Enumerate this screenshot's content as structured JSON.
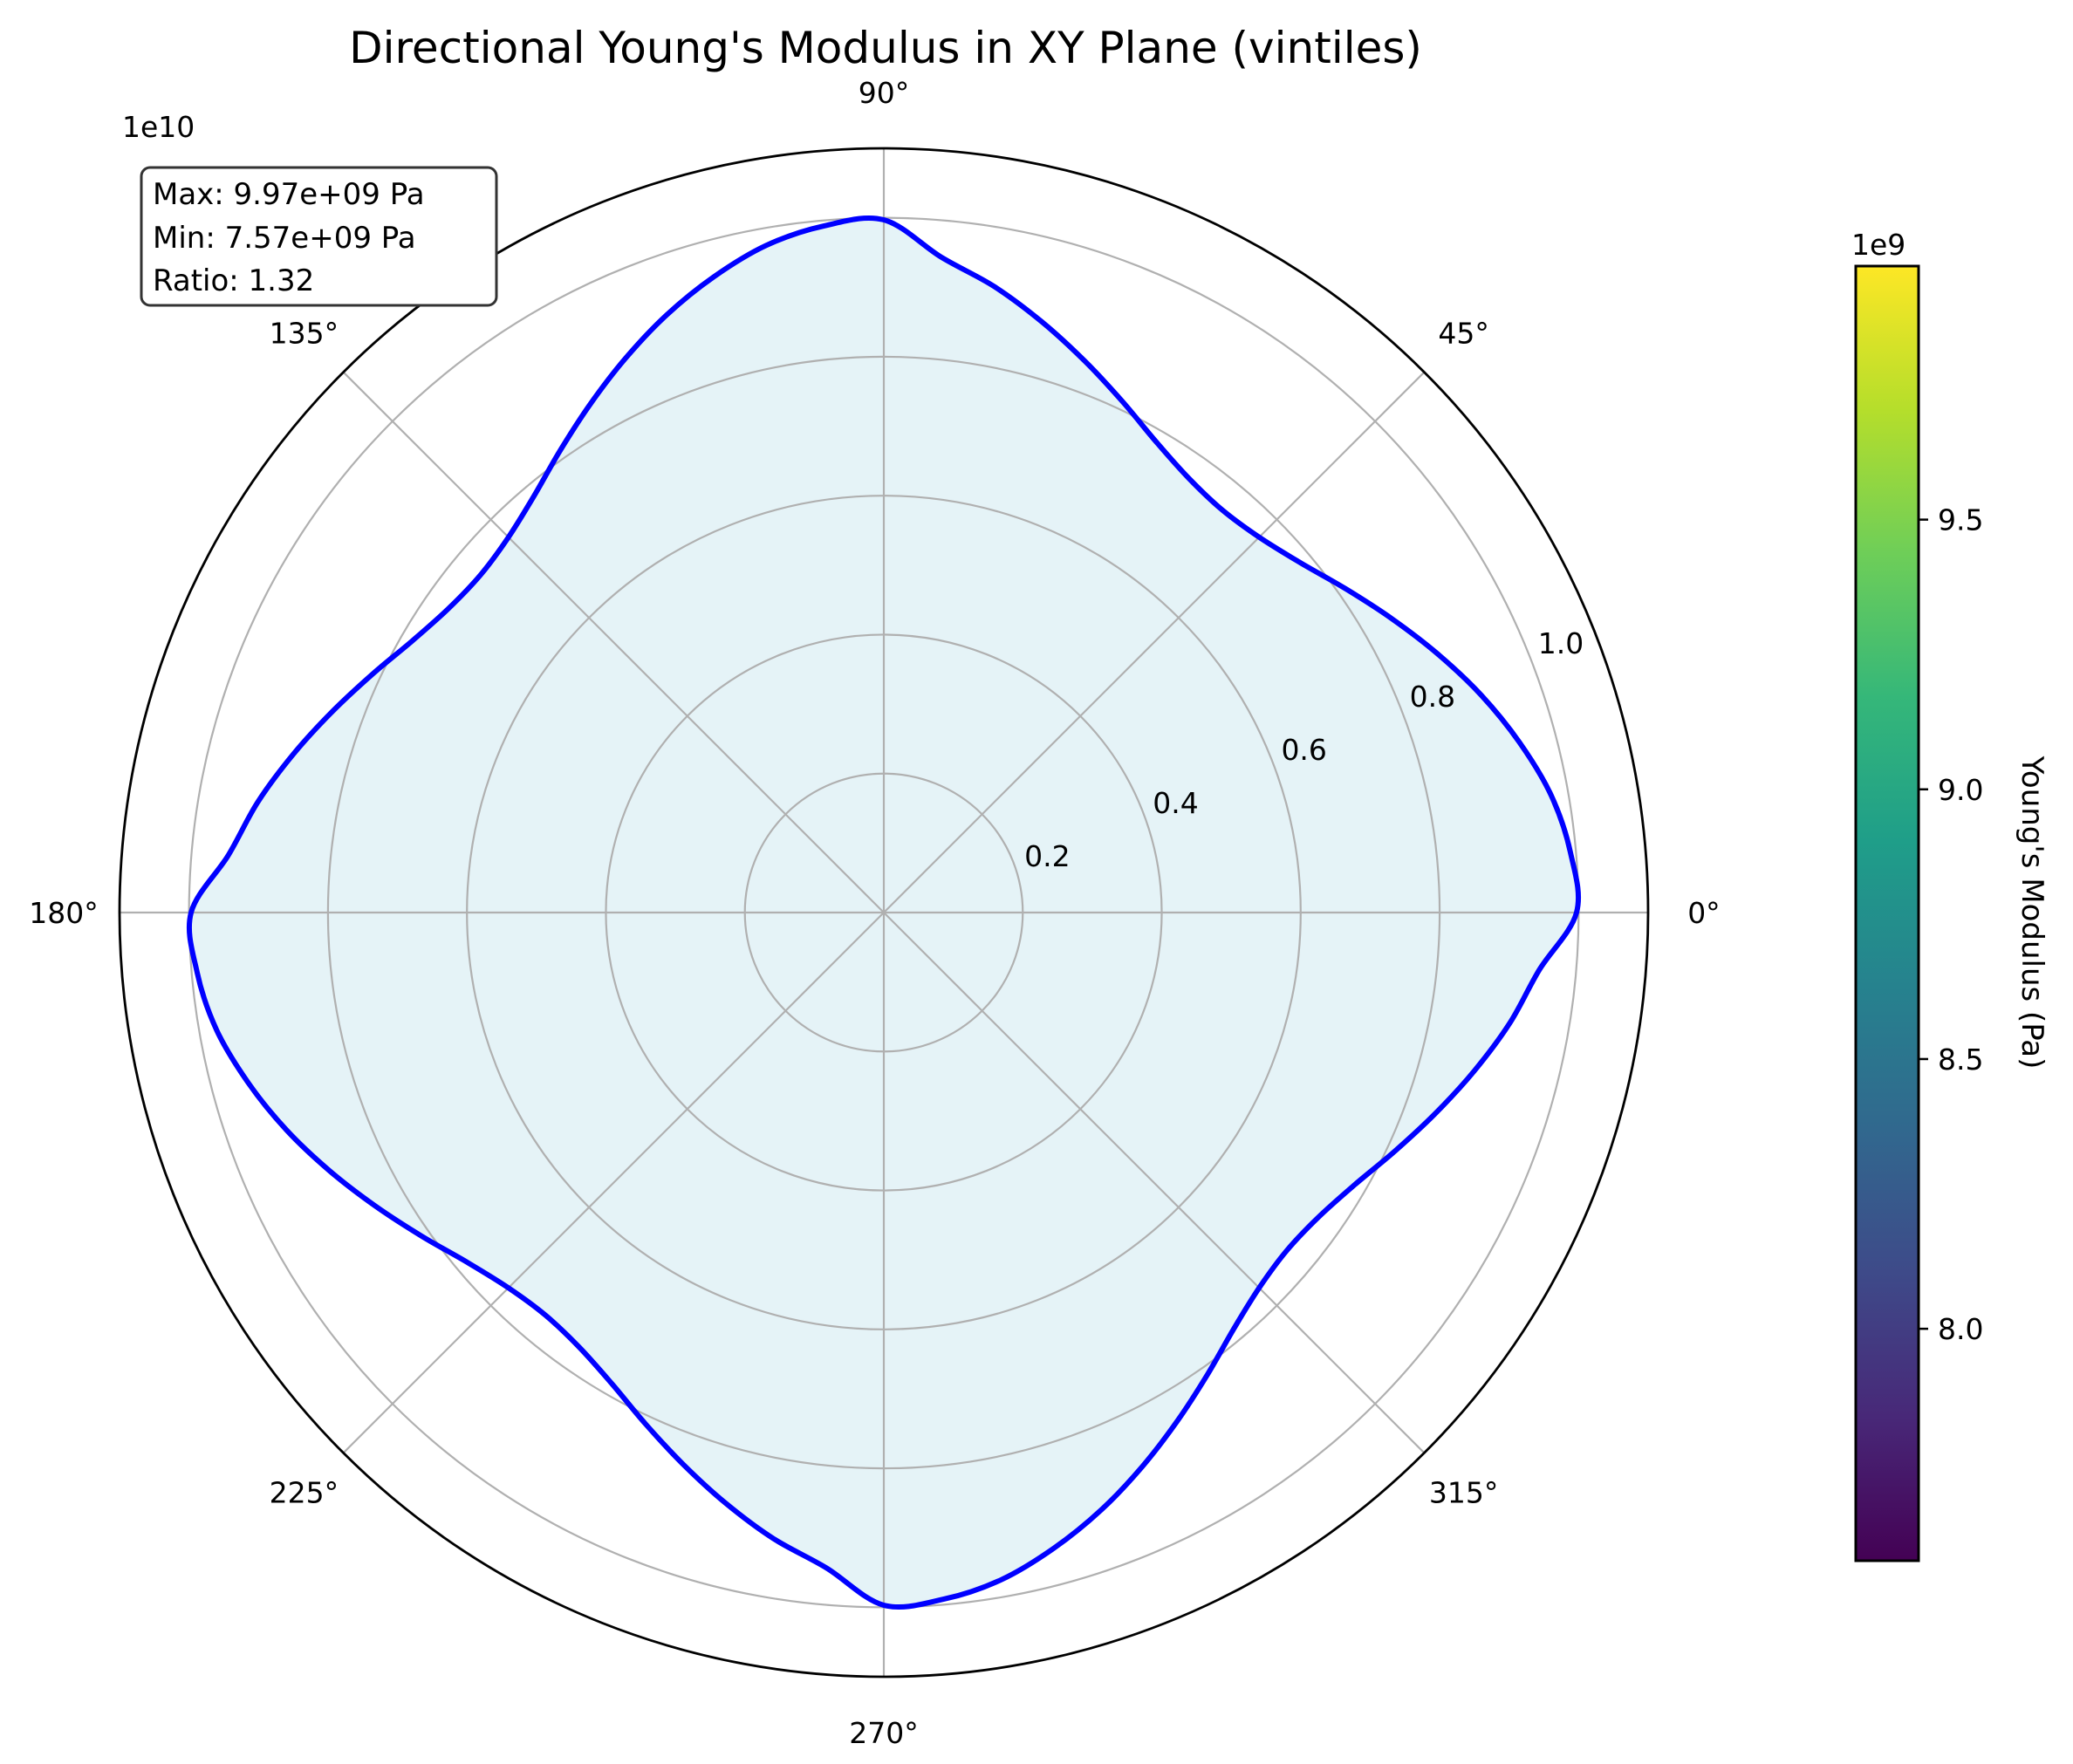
{
  "chart_data": {
    "type": "polar-line",
    "title": "Directional Young's Modulus in XY Plane (vintiles)",
    "radial_axis": {
      "offset_text": "1e10",
      "ticks": [
        0.2,
        0.4,
        0.6,
        0.8,
        1.0
      ],
      "tick_labels": [
        "0.2",
        "0.4",
        "0.6",
        "0.8",
        "1.0"
      ],
      "rlim": [
        0,
        1.1
      ]
    },
    "angular_axis": {
      "ticks_deg": [
        0,
        45,
        90,
        135,
        180,
        225,
        270,
        315
      ],
      "tick_labels": [
        "0°",
        "45°",
        "90°",
        "135°",
        "180°",
        "225°",
        "270°",
        "315°"
      ]
    },
    "grid": true,
    "series": [
      {
        "angle_deg": [
          0,
          5,
          10,
          15,
          20,
          25,
          30,
          35,
          40,
          45,
          50,
          55,
          60,
          65,
          70,
          75,
          80,
          85,
          90
        ],
        "modulus_1e10_pa": [
          0.997,
          0.992,
          0.975,
          0.947,
          0.915,
          0.88,
          0.845,
          0.812,
          0.783,
          0.764,
          0.757,
          0.764,
          0.783,
          0.812,
          0.845,
          0.88,
          0.915,
          0.947,
          0.997
        ],
        "symmetry": "fourfold",
        "line_color": "#0000ff",
        "fill_color": "#e5f3f7"
      }
    ],
    "annotation": {
      "lines": [
        "Max: 9.97e+09 Pa",
        "Min: 7.57e+09 Pa",
        "Ratio: 1.32"
      ]
    },
    "colorbar": {
      "label": "Young's Modulus (Pa)",
      "offset_text": "1e9",
      "range": [
        7.57,
        9.97
      ],
      "ticks": [
        8.0,
        8.5,
        9.0,
        9.5
      ],
      "tick_labels": [
        "8.0",
        "8.5",
        "9.0",
        "9.5"
      ],
      "colormap": "viridis",
      "colormap_stops": [
        "#440154",
        "#482878",
        "#3e4a89",
        "#31688e",
        "#26828e",
        "#1f9e89",
        "#35b779",
        "#6ece58",
        "#b5de2b",
        "#fde725"
      ]
    }
  }
}
